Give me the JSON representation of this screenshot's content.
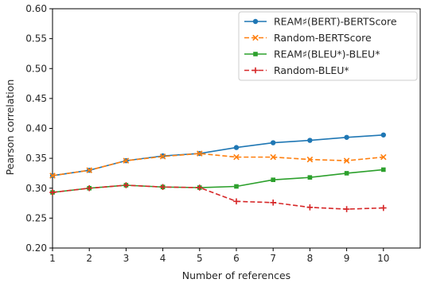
{
  "chart_data": {
    "type": "line",
    "xlabel": "Number of references",
    "ylabel": "Pearson correlation",
    "x": [
      1,
      2,
      3,
      4,
      5,
      6,
      7,
      8,
      9,
      10
    ],
    "xlim": [
      1,
      11
    ],
    "ylim": [
      0.2,
      0.6
    ],
    "x_ticks": [
      "1",
      "2",
      "3",
      "4",
      "5",
      "6",
      "7",
      "8",
      "9",
      "10"
    ],
    "y_ticks": [
      "0.20",
      "0.25",
      "0.30",
      "0.35",
      "0.40",
      "0.45",
      "0.50",
      "0.55",
      "0.60"
    ],
    "y_tick_values": [
      0.2,
      0.25,
      0.3,
      0.35,
      0.4,
      0.45,
      0.5,
      0.55,
      0.6
    ],
    "grid": false,
    "legend_position": "top-right",
    "series": [
      {
        "name": "REAM♯(BERT)-BERTScore",
        "color": "#1f77b4",
        "line_style": "solid",
        "marker": "circle",
        "values": [
          0.321,
          0.33,
          0.346,
          0.354,
          0.358,
          0.368,
          0.376,
          0.38,
          0.385,
          0.389
        ]
      },
      {
        "name": "Random-BERTScore",
        "color": "#ff7f0e",
        "line_style": "dashed",
        "marker": "x",
        "values": [
          0.321,
          0.33,
          0.346,
          0.353,
          0.358,
          0.352,
          0.352,
          0.348,
          0.346,
          0.352
        ]
      },
      {
        "name": "REAM♯(BLEU*)-BLEU*",
        "color": "#2ca02c",
        "line_style": "solid",
        "marker": "square",
        "values": [
          0.293,
          0.3,
          0.305,
          0.302,
          0.301,
          0.303,
          0.314,
          0.318,
          0.325,
          0.331
        ]
      },
      {
        "name": "Random-BLEU*",
        "color": "#d62728",
        "line_style": "dashed",
        "marker": "plus",
        "values": [
          0.293,
          0.3,
          0.305,
          0.302,
          0.301,
          0.278,
          0.276,
          0.268,
          0.265,
          0.267
        ]
      }
    ]
  }
}
